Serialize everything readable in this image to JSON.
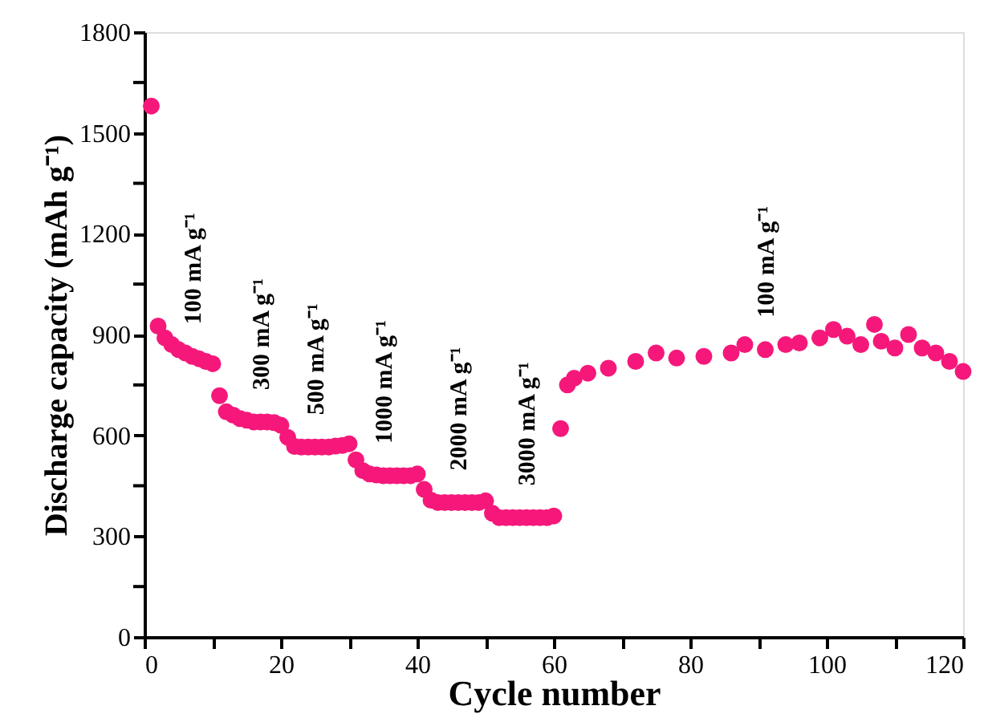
{
  "chart_data": {
    "type": "scatter",
    "xlabel": "Cycle number",
    "ylabel": "Discharge capacity (mAh g⁻¹)",
    "x": [
      1,
      2,
      3,
      4,
      5,
      6,
      7,
      8,
      9,
      10,
      11,
      12,
      13,
      14,
      15,
      16,
      17,
      18,
      19,
      20,
      21,
      22,
      23,
      24,
      25,
      26,
      27,
      28,
      29,
      30,
      31,
      32,
      33,
      34,
      35,
      36,
      37,
      38,
      39,
      40,
      41,
      42,
      43,
      44,
      45,
      46,
      47,
      48,
      49,
      50,
      51,
      52,
      53,
      54,
      55,
      56,
      57,
      58,
      59,
      60,
      61,
      62,
      63,
      65,
      68,
      72,
      75,
      78,
      82,
      86,
      88,
      91,
      94,
      96,
      99,
      101,
      103,
      105,
      107,
      108,
      110,
      112,
      114,
      116,
      118,
      120
    ],
    "series": [
      {
        "color": "#f5187a",
        "values": [
          1580,
          925,
          890,
          870,
          855,
          845,
          835,
          828,
          820,
          813,
          718,
          670,
          660,
          650,
          645,
          640,
          640,
          640,
          638,
          630,
          594,
          567,
          565,
          565,
          565,
          565,
          565,
          568,
          570,
          575,
          527,
          495,
          485,
          482,
          480,
          480,
          480,
          480,
          480,
          485,
          439,
          407,
          400,
          400,
          400,
          400,
          400,
          400,
          400,
          405,
          368,
          355,
          355,
          355,
          355,
          355,
          355,
          355,
          355,
          360,
          620,
          750,
          770,
          785,
          800,
          820,
          845,
          830,
          835,
          845,
          870,
          855,
          870,
          875,
          890,
          915,
          895,
          870,
          930,
          880,
          860,
          900,
          860,
          845,
          820,
          790
        ]
      }
    ],
    "marker": "circle",
    "xlim": [
      0,
      120
    ],
    "ylim": [
      0,
      1800
    ],
    "xticks": [
      0,
      {
        "value": 10,
        "label": null
      },
      20,
      {
        "value": 30,
        "label": null
      },
      40,
      {
        "value": 50,
        "label": null
      },
      60,
      {
        "value": 70,
        "label": null
      },
      80,
      {
        "value": 90,
        "label": null
      },
      100,
      {
        "value": 110,
        "label": null
      },
      120
    ],
    "yticks": [
      0,
      {
        "value": 150,
        "label": null
      },
      300,
      {
        "value": 450,
        "label": null
      },
      600,
      {
        "value": 750,
        "label": null
      },
      900,
      {
        "value": 1050,
        "label": null
      },
      1200,
      {
        "value": 1350,
        "label": null
      },
      1500,
      {
        "value": 1650,
        "label": null
      },
      1800
    ],
    "grid": false,
    "annotations": [
      {
        "text": "100 mA g⁻¹",
        "x": 7,
        "y": 835
      },
      {
        "text": "300 mA g⁻¹",
        "x": 17,
        "y": 640
      },
      {
        "text": "500 mA g⁻¹",
        "x": 25,
        "y": 565
      },
      {
        "text": "1000 mA g⁻¹",
        "x": 35,
        "y": 480
      },
      {
        "text": "2000 mA g⁻¹",
        "x": 46,
        "y": 400
      },
      {
        "text": "3000 mA g⁻¹",
        "x": 56,
        "y": 355
      },
      {
        "text": "100 mA g⁻¹",
        "x": 91,
        "y": 855
      }
    ]
  }
}
